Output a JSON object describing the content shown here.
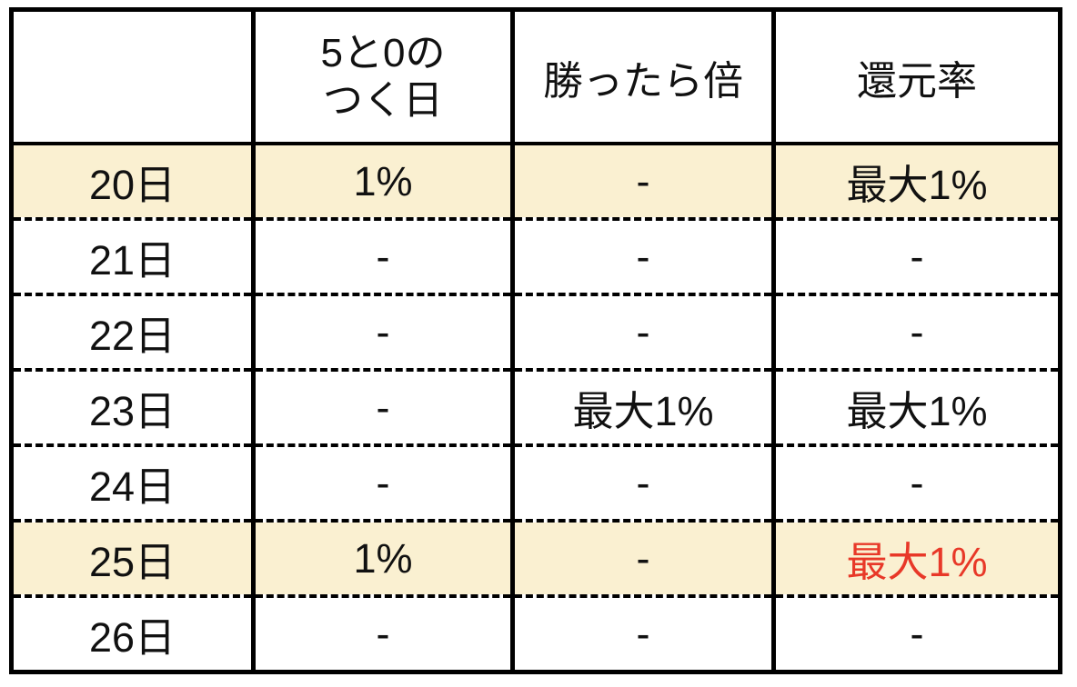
{
  "chart_data": {
    "type": "table",
    "columns": [
      "",
      "5と0の\nつく日",
      "勝ったら倍",
      "還元率"
    ],
    "rows": [
      [
        "20日",
        "1%",
        "-",
        "最大1%"
      ],
      [
        "21日",
        "-",
        "-",
        "-"
      ],
      [
        "22日",
        "-",
        "-",
        "-"
      ],
      [
        "23日",
        "-",
        "最大1%",
        "最大1%"
      ],
      [
        "24日",
        "-",
        "-",
        "-"
      ],
      [
        "25日",
        "1%",
        "-",
        "最大1%"
      ],
      [
        "26日",
        "-",
        "-",
        "-"
      ]
    ],
    "highlighted_row_indexes": [
      0,
      5
    ],
    "emphasized_cell": {
      "row_index": 5,
      "column_index": 3,
      "style": "bold-red"
    },
    "layout": {
      "grid": "solid vertical borders, dashed horizontal row separators",
      "legend_position": "none"
    }
  },
  "colors": {
    "row_highlight": "#FAF0D1",
    "emphasis_red": "#E83828",
    "border": "#000000",
    "text": "#111111",
    "background": "#FFFFFF"
  }
}
